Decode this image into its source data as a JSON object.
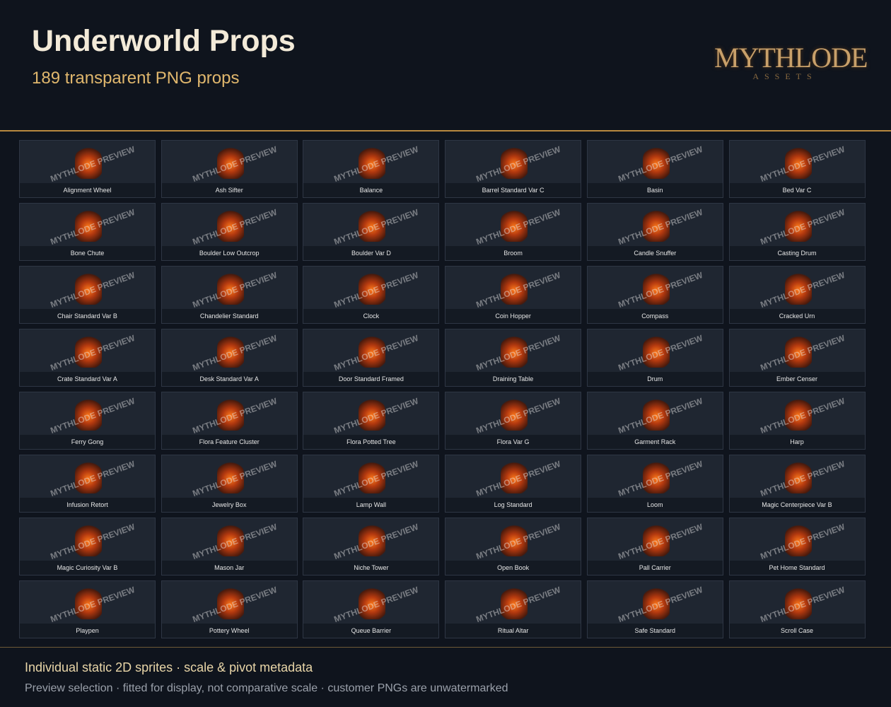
{
  "header": {
    "title": "Underworld Props",
    "subtitle": "189 transparent PNG props"
  },
  "logo": {
    "name": "MYTHLODE",
    "tagline": "ASSETS"
  },
  "watermark": "MYTHLODE PREVIEW",
  "items": [
    "Alignment Wheel",
    "Ash Sifter",
    "Balance",
    "Barrel Standard Var C",
    "Basin",
    "Bed Var C",
    "Bone Chute",
    "Boulder Low Outcrop",
    "Boulder Var D",
    "Broom",
    "Candle Snuffer",
    "Casting Drum",
    "Chair Standard Var B",
    "Chandelier Standard",
    "Clock",
    "Coin Hopper",
    "Compass",
    "Cracked Urn",
    "Crate Standard Var A",
    "Desk Standard Var A",
    "Door Standard Framed",
    "Draining Table",
    "Drum",
    "Ember Censer",
    "Ferry Gong",
    "Flora Feature Cluster",
    "Flora Potted Tree",
    "Flora Var G",
    "Garment Rack",
    "Harp",
    "Infusion Retort",
    "Jewelry Box",
    "Lamp Wall",
    "Log Standard",
    "Loom",
    "Magic Centerpiece Var B",
    "Magic Curiosity Var B",
    "Mason Jar",
    "Niche Tower",
    "Open Book",
    "Pall Carrier",
    "Pet Home Standard",
    "Playpen",
    "Pottery Wheel",
    "Queue Barrier",
    "Ritual Altar",
    "Safe Standard",
    "Scroll Case"
  ],
  "footer": {
    "line1": "Individual static 2D sprites · scale & pivot metadata",
    "line2": "Preview selection · fitted for display, not comparative scale · customer PNGs are unwatermarked"
  }
}
